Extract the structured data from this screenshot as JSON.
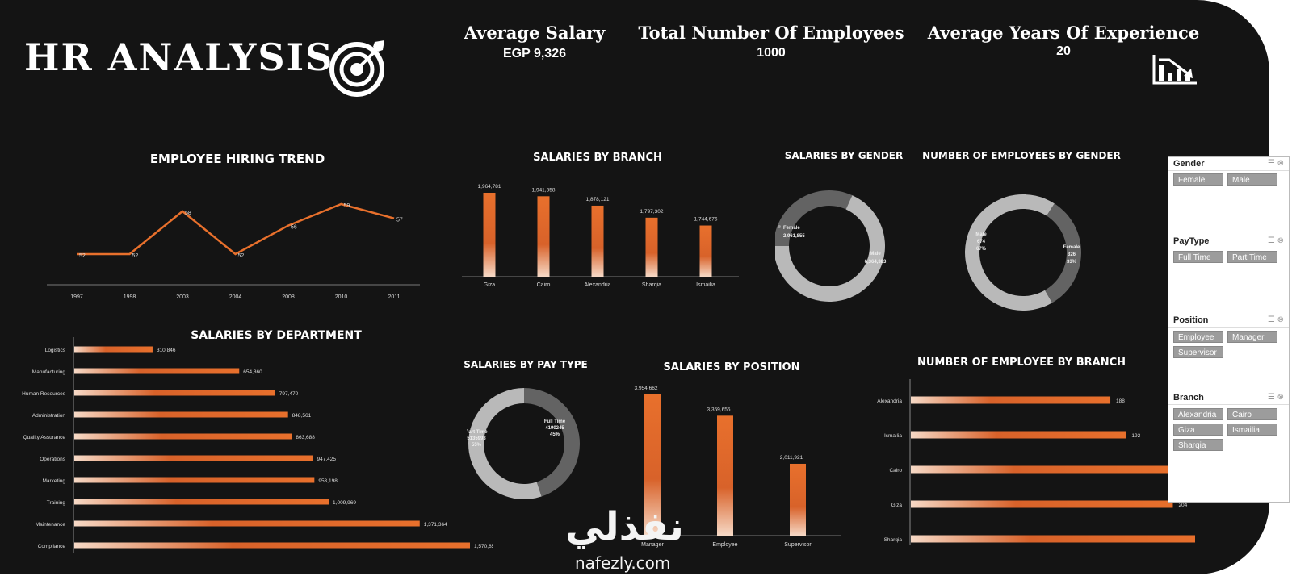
{
  "dashboard": {
    "title": "HR ANALYSIS",
    "kpis": [
      {
        "label": "Average Salary",
        "value": "EGP 9,326"
      },
      {
        "label": "Total Number Of Employees",
        "value": "1000"
      },
      {
        "label": "Average Years Of Experience",
        "value": "20"
      }
    ],
    "icons": {
      "target": "target-icon",
      "chart": "bar-chart-icon"
    },
    "accent": "#e8702c",
    "watermark": {
      "arabic": "نفذلي",
      "latin": "nafezly.com"
    }
  },
  "slicers": [
    {
      "title": "Gender",
      "items": [
        "Female",
        "Male"
      ]
    },
    {
      "title": "PayType",
      "items": [
        "Full Time",
        "Part Time"
      ]
    },
    {
      "title": "Position",
      "items": [
        "Employee",
        "Manager",
        "Supervisor"
      ]
    },
    {
      "title": "Branch",
      "items": [
        "Alexandria",
        "Cairo",
        "Giza",
        "Ismailia",
        "Sharqia"
      ]
    }
  ],
  "chart_data": [
    {
      "id": "hiring",
      "type": "line",
      "title": "EMPLOYEE HIRING TREND",
      "categories": [
        "1997",
        "1998",
        "2003",
        "2004",
        "2008",
        "2010",
        "2011"
      ],
      "values": [
        52,
        52,
        58,
        52,
        56,
        59,
        57
      ],
      "color": "#e8702c"
    },
    {
      "id": "branch_salary",
      "type": "bar",
      "title": "SALARIES BY BRANCH",
      "categories": [
        "Giza",
        "Cairo",
        "Alexandria",
        "Sharqia",
        "Ismailia"
      ],
      "values": [
        1964781,
        1941358,
        1878121,
        1797302,
        1744676
      ],
      "labels": [
        "1,964,781",
        "1,941,358",
        "1,878,121",
        "1,797,302",
        "1,744,676"
      ]
    },
    {
      "id": "gender_salary",
      "type": "pie",
      "title": "SALARIES BY GENDER",
      "slices": [
        {
          "name": "Female",
          "value": 2961855,
          "label": "2,961,855"
        },
        {
          "name": "Male",
          "value": 6364383,
          "label": "6,364,383"
        }
      ]
    },
    {
      "id": "gender_count",
      "type": "pie",
      "title": "NUMBER OF EMPLOYEES BY GENDER",
      "slices": [
        {
          "name": "Male",
          "value": 674,
          "pct": "67%"
        },
        {
          "name": "Female",
          "value": 326,
          "pct": "33%"
        }
      ]
    },
    {
      "id": "department",
      "type": "bar",
      "title": "SALARIES BY DEPARTMENT",
      "categories": [
        "Logistics",
        "Manufacturing",
        "Human Resources",
        "Administration",
        "Quality Assurance",
        "Operations",
        "Marketing",
        "Training",
        "Maintenance",
        "Compliance"
      ],
      "values": [
        310846,
        654860,
        797470,
        848561,
        863688,
        947425,
        953198,
        1009969,
        1371364,
        1570859
      ],
      "labels": [
        "310,846",
        "654,860",
        "797,470",
        "848,561",
        "863,688",
        "947,425",
        "953,198",
        "1,009,969",
        "1,371,364",
        "1,570,859"
      ]
    },
    {
      "id": "paytype",
      "type": "pie",
      "title": "SALARIES BY PAY TYPE",
      "slices": [
        {
          "name": "Full Time",
          "value": 4190245,
          "pct": "45%"
        },
        {
          "name": "Part Time",
          "value": 5135993,
          "pct": "55%"
        }
      ]
    },
    {
      "id": "position",
      "type": "bar",
      "title": "SALARIES BY POSITION",
      "categories": [
        "Manager",
        "Employee",
        "Supervisor"
      ],
      "values": [
        3954662,
        3359655,
        2011921
      ],
      "labels": [
        "3,954,662",
        "3,359,655",
        "2,011,921"
      ]
    },
    {
      "id": "branch_count",
      "type": "bar",
      "title": "NUMBER OF EMPLOYEE BY BRANCH",
      "categories": [
        "Alexandria",
        "Ismailia",
        "Cairo",
        "Giza",
        "Sharqia"
      ],
      "values": [
        188,
        192,
        203,
        204,
        213
      ]
    }
  ]
}
